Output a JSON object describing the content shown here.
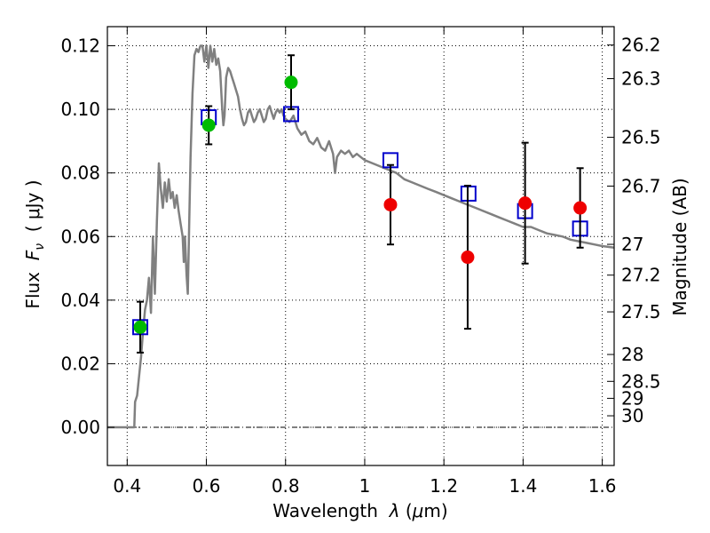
{
  "chart_data": {
    "type": "scatter",
    "xlabel_prefix": "Wavelength  ",
    "xlabel_symbol": "λ",
    "xlabel_unit_open": " (",
    "xlabel_unit_mu": "μ",
    "xlabel_unit_rest": "m)",
    "ylabel_prefix": "Flux  ",
    "ylabel_symbol": "F",
    "ylabel_sub": "ν",
    "ylabel_unit": "  ( μJy )",
    "y2label": "Magnitude (AB)",
    "xlim": [
      0.35,
      1.63
    ],
    "ylim": [
      -0.012,
      0.126
    ],
    "grid": true,
    "x_ticks": [
      {
        "v": 0.4,
        "label": "0.4"
      },
      {
        "v": 0.6,
        "label": "0.6"
      },
      {
        "v": 0.8,
        "label": "0.8"
      },
      {
        "v": 1.0,
        "label": "1"
      },
      {
        "v": 1.2,
        "label": "1.2"
      },
      {
        "v": 1.4,
        "label": "1.4"
      },
      {
        "v": 1.6,
        "label": "1.6"
      }
    ],
    "y_ticks": [
      {
        "v": 0.0,
        "label": "0.00"
      },
      {
        "v": 0.02,
        "label": "0.02"
      },
      {
        "v": 0.04,
        "label": "0.04"
      },
      {
        "v": 0.06,
        "label": "0.06"
      },
      {
        "v": 0.08,
        "label": "0.08"
      },
      {
        "v": 0.1,
        "label": "0.10"
      },
      {
        "v": 0.12,
        "label": "0.12"
      }
    ],
    "y2_ticks": [
      {
        "mag": 26.2,
        "label": "26.2"
      },
      {
        "mag": 26.3,
        "label": "26.3"
      },
      {
        "mag": 26.5,
        "label": "26.5"
      },
      {
        "mag": 26.7,
        "label": "26.7"
      },
      {
        "mag": 27.0,
        "label": "27"
      },
      {
        "mag": 27.2,
        "label": "27.2"
      },
      {
        "mag": 27.5,
        "label": "27.5"
      },
      {
        "mag": 28.0,
        "label": "28"
      },
      {
        "mag": 28.5,
        "label": "28.5"
      },
      {
        "mag": 29.0,
        "label": "29"
      },
      {
        "mag": 30.0,
        "label": "30"
      }
    ],
    "model_sed": {
      "color": "#808080",
      "points": [
        [
          0.35,
          0.0
        ],
        [
          0.4,
          0.0
        ],
        [
          0.418,
          0.0
        ],
        [
          0.42,
          0.008
        ],
        [
          0.425,
          0.01
        ],
        [
          0.43,
          0.016
        ],
        [
          0.435,
          0.022
        ],
        [
          0.44,
          0.03
        ],
        [
          0.445,
          0.037
        ],
        [
          0.45,
          0.04
        ],
        [
          0.455,
          0.047
        ],
        [
          0.46,
          0.036
        ],
        [
          0.465,
          0.06
        ],
        [
          0.47,
          0.042
        ],
        [
          0.475,
          0.065
        ],
        [
          0.48,
          0.083
        ],
        [
          0.485,
          0.075
        ],
        [
          0.49,
          0.069
        ],
        [
          0.495,
          0.077
        ],
        [
          0.5,
          0.071
        ],
        [
          0.505,
          0.078
        ],
        [
          0.51,
          0.072
        ],
        [
          0.515,
          0.074
        ],
        [
          0.52,
          0.069
        ],
        [
          0.525,
          0.073
        ],
        [
          0.53,
          0.068
        ],
        [
          0.535,
          0.064
        ],
        [
          0.54,
          0.06
        ],
        [
          0.543,
          0.052
        ],
        [
          0.546,
          0.06
        ],
        [
          0.55,
          0.048
        ],
        [
          0.553,
          0.042
        ],
        [
          0.556,
          0.06
        ],
        [
          0.56,
          0.085
        ],
        [
          0.565,
          0.105
        ],
        [
          0.57,
          0.117
        ],
        [
          0.575,
          0.119
        ],
        [
          0.58,
          0.118
        ],
        [
          0.585,
          0.12
        ],
        [
          0.59,
          0.12
        ],
        [
          0.595,
          0.115
        ],
        [
          0.6,
          0.12
        ],
        [
          0.605,
          0.113
        ],
        [
          0.61,
          0.12
        ],
        [
          0.615,
          0.115
        ],
        [
          0.62,
          0.119
        ],
        [
          0.625,
          0.114
        ],
        [
          0.63,
          0.116
        ],
        [
          0.635,
          0.112
        ],
        [
          0.64,
          0.1
        ],
        [
          0.643,
          0.095
        ],
        [
          0.646,
          0.098
        ],
        [
          0.65,
          0.11
        ],
        [
          0.655,
          0.113
        ],
        [
          0.66,
          0.112
        ],
        [
          0.665,
          0.11
        ],
        [
          0.67,
          0.108
        ],
        [
          0.675,
          0.106
        ],
        [
          0.68,
          0.104
        ],
        [
          0.685,
          0.1
        ],
        [
          0.69,
          0.097
        ],
        [
          0.695,
          0.095
        ],
        [
          0.7,
          0.096
        ],
        [
          0.705,
          0.099
        ],
        [
          0.71,
          0.1
        ],
        [
          0.715,
          0.098
        ],
        [
          0.72,
          0.096
        ],
        [
          0.725,
          0.097
        ],
        [
          0.73,
          0.099
        ],
        [
          0.735,
          0.1
        ],
        [
          0.74,
          0.098
        ],
        [
          0.745,
          0.096
        ],
        [
          0.75,
          0.097
        ],
        [
          0.755,
          0.1
        ],
        [
          0.76,
          0.101
        ],
        [
          0.765,
          0.099
        ],
        [
          0.77,
          0.097
        ],
        [
          0.775,
          0.099
        ],
        [
          0.78,
          0.1
        ],
        [
          0.785,
          0.099
        ],
        [
          0.79,
          0.1
        ],
        [
          0.795,
          0.098
        ],
        [
          0.8,
          0.097
        ],
        [
          0.81,
          0.096
        ],
        [
          0.82,
          0.098
        ],
        [
          0.83,
          0.094
        ],
        [
          0.84,
          0.092
        ],
        [
          0.85,
          0.093
        ],
        [
          0.86,
          0.09
        ],
        [
          0.87,
          0.089
        ],
        [
          0.88,
          0.091
        ],
        [
          0.89,
          0.088
        ],
        [
          0.9,
          0.087
        ],
        [
          0.91,
          0.09
        ],
        [
          0.92,
          0.086
        ],
        [
          0.925,
          0.08
        ],
        [
          0.93,
          0.085
        ],
        [
          0.94,
          0.087
        ],
        [
          0.95,
          0.086
        ],
        [
          0.96,
          0.087
        ],
        [
          0.97,
          0.085
        ],
        [
          0.98,
          0.086
        ],
        [
          0.99,
          0.085
        ],
        [
          1.0,
          0.084
        ],
        [
          1.02,
          0.083
        ],
        [
          1.04,
          0.082
        ],
        [
          1.06,
          0.081
        ],
        [
          1.08,
          0.08
        ],
        [
          1.1,
          0.078
        ],
        [
          1.12,
          0.077
        ],
        [
          1.14,
          0.076
        ],
        [
          1.16,
          0.075
        ],
        [
          1.18,
          0.074
        ],
        [
          1.2,
          0.073
        ],
        [
          1.22,
          0.072
        ],
        [
          1.24,
          0.071
        ],
        [
          1.26,
          0.07
        ],
        [
          1.28,
          0.069
        ],
        [
          1.3,
          0.068
        ],
        [
          1.32,
          0.067
        ],
        [
          1.34,
          0.066
        ],
        [
          1.36,
          0.065
        ],
        [
          1.38,
          0.064
        ],
        [
          1.4,
          0.063
        ],
        [
          1.42,
          0.063
        ],
        [
          1.44,
          0.062
        ],
        [
          1.46,
          0.061
        ],
        [
          1.48,
          0.0605
        ],
        [
          1.5,
          0.06
        ],
        [
          1.52,
          0.059
        ],
        [
          1.54,
          0.0585
        ],
        [
          1.56,
          0.058
        ],
        [
          1.58,
          0.0575
        ],
        [
          1.6,
          0.057
        ],
        [
          1.63,
          0.0565
        ]
      ]
    },
    "model_bands": {
      "color": "#0000cc",
      "points": [
        {
          "x": 0.433,
          "y": 0.0315
        },
        {
          "x": 0.606,
          "y": 0.0975
        },
        {
          "x": 0.814,
          "y": 0.0985
        },
        {
          "x": 1.065,
          "y": 0.084
        },
        {
          "x": 1.262,
          "y": 0.0735
        },
        {
          "x": 1.405,
          "y": 0.068
        },
        {
          "x": 1.544,
          "y": 0.0625
        }
      ]
    },
    "observed_optical": {
      "color": "#00bb00",
      "points": [
        {
          "x": 0.433,
          "y": 0.0315,
          "err": 0.008
        },
        {
          "x": 0.606,
          "y": 0.095,
          "err": 0.006
        },
        {
          "x": 0.814,
          "y": 0.1085,
          "err": 0.0085
        }
      ]
    },
    "observed_nir": {
      "color": "#ee0000",
      "points": [
        {
          "x": 1.065,
          "y": 0.07,
          "err": 0.0125
        },
        {
          "x": 1.26,
          "y": 0.0535,
          "err": 0.0225
        },
        {
          "x": 1.405,
          "y": 0.0705,
          "err": 0.019
        },
        {
          "x": 1.544,
          "y": 0.069,
          "err": 0.0125
        }
      ]
    }
  }
}
